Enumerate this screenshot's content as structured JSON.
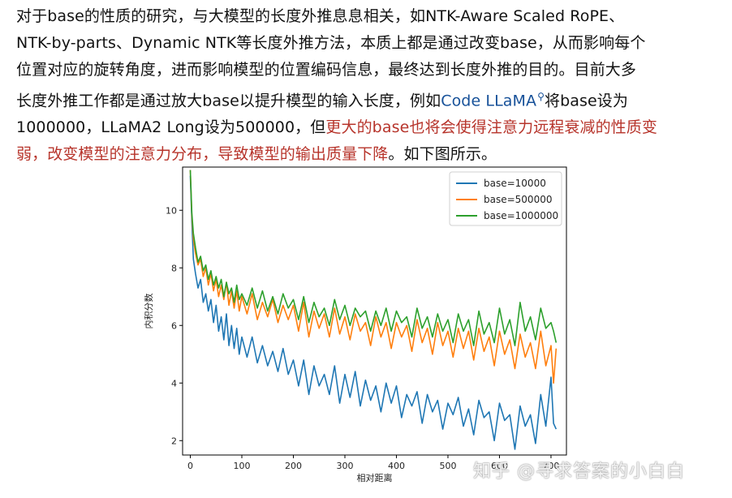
{
  "article": {
    "line1": "对于base的性质的研究，与大模型的长度外推息息相关，如NTK-Aware Scaled RoPE、",
    "line2": "NTK-by-parts、Dynamic NTK等长度外推方法，本质上都是通过改变base，从而影响每个",
    "line3": "位置对应的旋转角度，进而影响模型的位置编码信息，最终达到长度外推的目的。目前大多",
    "line4_before": "长度外推工作都是通过放大base以提升模型的输入长度，例如",
    "line4_link": "Code LLaMA",
    "line4_link_icon": "search-icon",
    "line4_after": "将base设为",
    "line5_before": "1000000，LLaMA2 Long设为500000，但",
    "line5_highlight": "更大的base也将会使得注意力远程衰减的性质变",
    "line6_highlight": "弱，改变模型的注意力分布，导致模型的输出质量下降",
    "line6_after": "。如下图所示。",
    "link_color": "#175199",
    "highlight_color": "#b7342b"
  },
  "chart_data": {
    "type": "line",
    "title": "",
    "xlabel": "相对距离",
    "ylabel": "内积分数",
    "xlim": [
      -15,
      730
    ],
    "ylim": [
      1.5,
      11.5
    ],
    "xticks": [
      0,
      100,
      200,
      300,
      400,
      500,
      600,
      700
    ],
    "yticks": [
      2,
      4,
      6,
      8,
      10
    ],
    "grid": false,
    "legend": "top-right",
    "series": [
      {
        "name": "base=10000",
        "color": "#1f77b4",
        "x": [
          0,
          3,
          6,
          10,
          15,
          20,
          25,
          30,
          35,
          40,
          45,
          50,
          55,
          60,
          65,
          70,
          75,
          80,
          85,
          90,
          95,
          100,
          110,
          120,
          130,
          140,
          150,
          160,
          170,
          180,
          190,
          200,
          210,
          220,
          230,
          240,
          250,
          260,
          270,
          280,
          290,
          300,
          310,
          320,
          330,
          340,
          350,
          360,
          370,
          380,
          390,
          400,
          410,
          420,
          430,
          440,
          450,
          460,
          470,
          480,
          490,
          500,
          510,
          520,
          530,
          540,
          550,
          560,
          570,
          580,
          590,
          600,
          610,
          620,
          630,
          640,
          650,
          660,
          670,
          680,
          690,
          700,
          705,
          710
        ],
        "values": [
          11.2,
          9.6,
          8.3,
          7.8,
          7.3,
          7.6,
          6.8,
          7.1,
          6.5,
          6.9,
          6.1,
          6.7,
          5.8,
          6.3,
          5.5,
          6.4,
          5.3,
          6.0,
          5.2,
          5.9,
          5.0,
          5.6,
          4.9,
          5.6,
          4.7,
          5.3,
          4.6,
          5.1,
          4.4,
          5.2,
          4.3,
          4.8,
          3.9,
          4.8,
          3.6,
          4.6,
          3.9,
          4.3,
          3.6,
          4.6,
          3.3,
          4.3,
          3.5,
          4.4,
          3.2,
          4.1,
          3.4,
          3.9,
          3.0,
          4.0,
          3.3,
          3.9,
          2.8,
          3.6,
          3.2,
          3.7,
          2.6,
          3.6,
          3.0,
          3.4,
          2.4,
          3.3,
          2.9,
          3.5,
          2.5,
          3.1,
          2.2,
          3.4,
          2.8,
          3.0,
          2.0,
          3.3,
          2.7,
          2.9,
          1.7,
          3.2,
          2.5,
          2.9,
          1.9,
          3.6,
          2.5,
          4.2,
          2.6,
          2.4
        ]
      },
      {
        "name": "base=500000",
        "color": "#ff7f0e",
        "x": [
          0,
          3,
          6,
          10,
          15,
          20,
          25,
          30,
          35,
          40,
          45,
          50,
          55,
          60,
          65,
          70,
          75,
          80,
          85,
          90,
          95,
          100,
          110,
          120,
          130,
          140,
          150,
          160,
          170,
          180,
          190,
          200,
          210,
          220,
          230,
          240,
          250,
          260,
          270,
          280,
          290,
          300,
          310,
          320,
          330,
          340,
          350,
          360,
          370,
          380,
          390,
          400,
          410,
          420,
          430,
          440,
          450,
          460,
          470,
          480,
          490,
          500,
          510,
          520,
          530,
          540,
          550,
          560,
          570,
          580,
          590,
          600,
          610,
          620,
          630,
          640,
          650,
          660,
          670,
          680,
          690,
          700,
          705,
          710
        ],
        "values": [
          11.4,
          9.8,
          9.0,
          8.5,
          8.1,
          8.3,
          7.7,
          8.0,
          7.4,
          7.8,
          7.2,
          7.6,
          7.0,
          7.4,
          6.9,
          7.5,
          6.7,
          7.2,
          6.6,
          7.2,
          6.5,
          7.0,
          6.4,
          7.1,
          6.2,
          6.8,
          6.3,
          6.9,
          6.1,
          6.7,
          6.2,
          6.7,
          5.8,
          6.8,
          5.6,
          6.5,
          5.9,
          6.4,
          5.6,
          6.6,
          5.7,
          6.3,
          5.5,
          6.4,
          5.8,
          6.1,
          5.3,
          6.3,
          5.6,
          6.1,
          5.2,
          6.1,
          5.6,
          6.0,
          5.1,
          6.2,
          5.4,
          5.9,
          5.0,
          6.1,
          5.3,
          5.8,
          4.9,
          5.9,
          5.2,
          5.8,
          4.8,
          5.9,
          5.1,
          5.6,
          4.6,
          5.8,
          5.0,
          5.5,
          4.5,
          5.7,
          4.9,
          5.4,
          4.5,
          5.8,
          4.6,
          5.3,
          4.0,
          5.2
        ]
      },
      {
        "name": "base=1000000",
        "color": "#2ca02c",
        "x": [
          0,
          3,
          6,
          10,
          15,
          20,
          25,
          30,
          35,
          40,
          45,
          50,
          55,
          60,
          65,
          70,
          75,
          80,
          85,
          90,
          95,
          100,
          110,
          120,
          130,
          140,
          150,
          160,
          170,
          180,
          190,
          200,
          210,
          220,
          230,
          240,
          250,
          260,
          270,
          280,
          290,
          300,
          310,
          320,
          330,
          340,
          350,
          360,
          370,
          380,
          390,
          400,
          410,
          420,
          430,
          440,
          450,
          460,
          470,
          480,
          490,
          500,
          510,
          520,
          530,
          540,
          550,
          560,
          570,
          580,
          590,
          600,
          610,
          620,
          630,
          640,
          650,
          660,
          670,
          680,
          690,
          700,
          705,
          710
        ],
        "values": [
          11.4,
          9.9,
          9.2,
          8.7,
          8.2,
          8.4,
          7.9,
          8.1,
          7.6,
          7.9,
          7.4,
          7.7,
          7.3,
          7.6,
          7.0,
          7.5,
          7.1,
          7.3,
          6.8,
          7.4,
          6.9,
          7.1,
          6.7,
          7.3,
          6.6,
          7.2,
          6.5,
          7.0,
          6.4,
          7.1,
          6.6,
          6.9,
          6.2,
          7.0,
          6.1,
          6.8,
          6.3,
          6.6,
          6.0,
          6.9,
          6.2,
          6.7,
          6.0,
          6.6,
          6.3,
          6.5,
          5.8,
          6.5,
          6.0,
          6.6,
          5.8,
          6.5,
          6.1,
          6.3,
          5.6,
          6.6,
          5.9,
          6.3,
          5.6,
          6.4,
          5.8,
          6.2,
          5.4,
          6.4,
          5.8,
          6.2,
          5.3,
          6.5,
          5.7,
          6.1,
          5.4,
          6.6,
          5.7,
          6.2,
          5.3,
          6.8,
          5.8,
          6.3,
          5.5,
          6.6,
          5.9,
          6.1,
          5.8,
          5.4
        ]
      }
    ]
  },
  "watermark": {
    "text": "知乎 @寻求答案的小白白"
  }
}
